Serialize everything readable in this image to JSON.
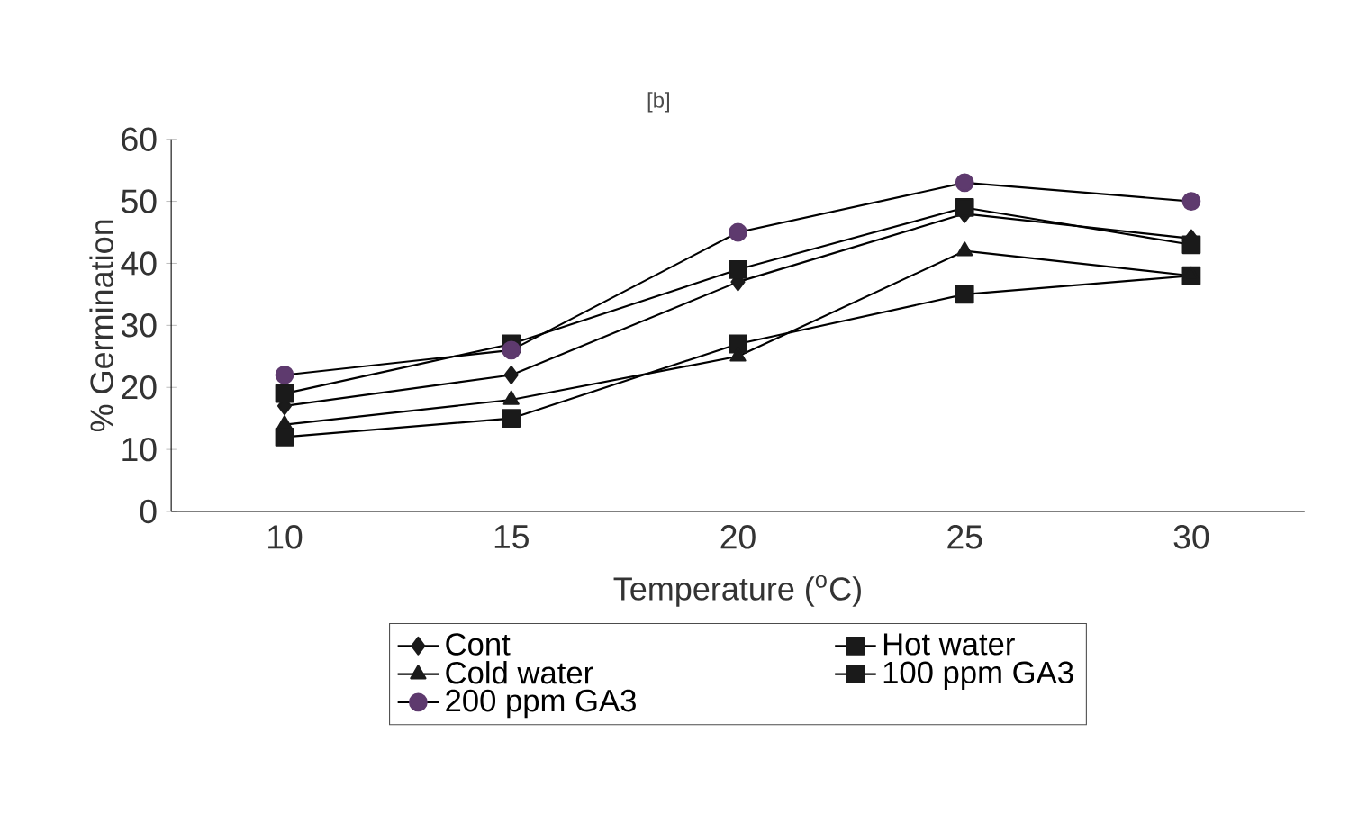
{
  "chart_data": {
    "type": "line",
    "xlabel": "Temperature ($^{o}$C)",
    "ylabel": "% Germination",
    "annotations": [
      "[b]"
    ],
    "categories": [
      "10",
      "15",
      "20",
      "25",
      "30"
    ],
    "ylim": [
      0,
      60
    ],
    "yticks": [
      0,
      10,
      20,
      30,
      40,
      50,
      60
    ],
    "legend": "bottom",
    "series": [
      {
        "name": "Cont",
        "color": "#1a1a1a",
        "marker": "diamond",
        "values": [
          17,
          22,
          37,
          48,
          44
        ]
      },
      {
        "name": "Hot water",
        "color": "#1a1a1a",
        "marker": "square",
        "values": [
          12,
          15,
          27,
          35,
          38
        ]
      },
      {
        "name": "Cold water",
        "color": "#1a1a1a",
        "marker": "triangle",
        "values": [
          14,
          18,
          25,
          42,
          38
        ]
      },
      {
        "name": "100 ppm GA3",
        "color": "#1a1a1a",
        "marker": "square",
        "values": [
          19,
          27,
          39,
          49,
          43
        ]
      },
      {
        "name": "200 ppm GA3",
        "color": "#5e3a6e",
        "marker": "circle",
        "values": [
          22,
          26,
          45,
          53,
          50
        ]
      }
    ]
  }
}
